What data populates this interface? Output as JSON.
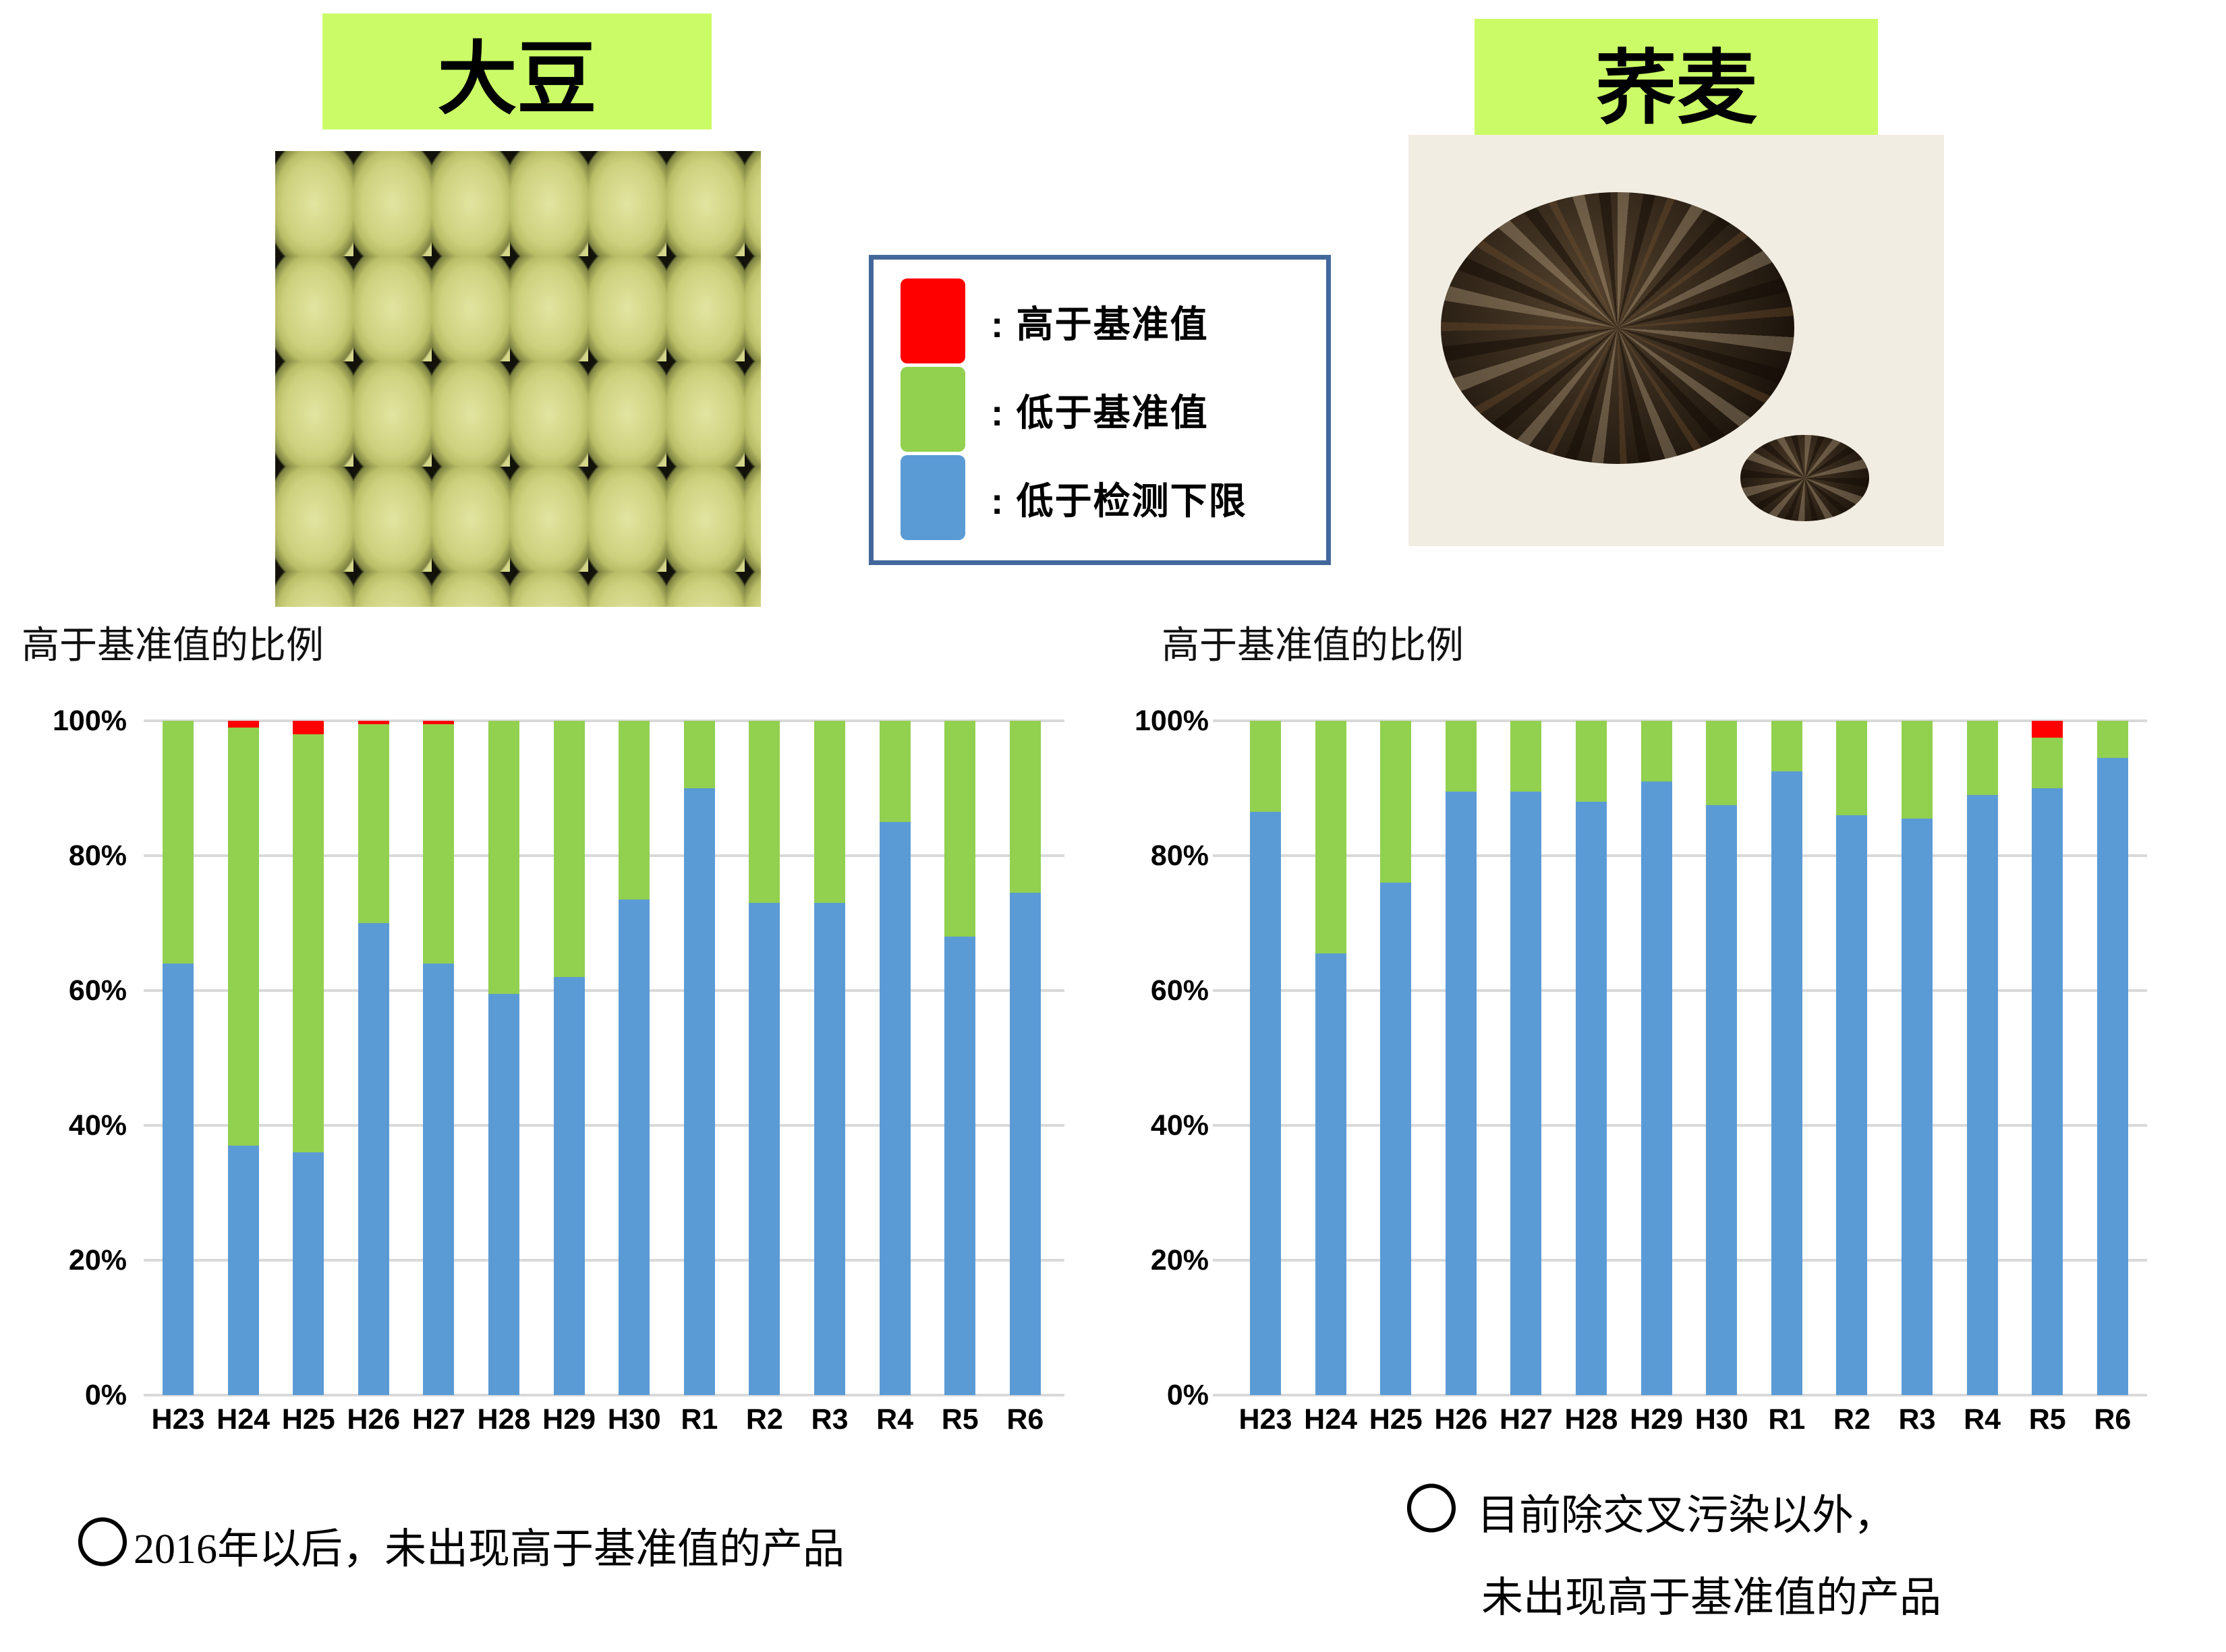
{
  "page_background": "#ffffff",
  "label_bg": "#CBFC67",
  "crops": {
    "soybean": {
      "label": "大豆"
    },
    "buckwheat": {
      "label": "荞麦"
    }
  },
  "legend": {
    "border_color": "#44679B",
    "items": [
      {
        "name": "above-standard",
        "color": "#FF0000",
        "label": ": 高于基准值"
      },
      {
        "name": "below-standard",
        "color": "#92D050",
        "label": ": 低于基准值"
      },
      {
        "name": "below-detection",
        "color": "#5B9BD5",
        "label": ": 低于检测下限"
      }
    ]
  },
  "chart_data": [
    {
      "type": "bar",
      "subtype": "stacked-100-percent",
      "crop": "大豆",
      "title": "高于基准值的比例",
      "categories": [
        "H23",
        "H24",
        "H25",
        "H26",
        "H27",
        "H28",
        "H29",
        "H30",
        "R1",
        "R2",
        "R3",
        "R4",
        "R5",
        "R6"
      ],
      "series": [
        {
          "name": "低于检测下限",
          "color": "#5B9BD5",
          "values": [
            64,
            37,
            36,
            70,
            64,
            59.5,
            62,
            73.5,
            90,
            73,
            73,
            85,
            68,
            74.5
          ]
        },
        {
          "name": "低于基准值",
          "color": "#92D050",
          "values": [
            36,
            62,
            62,
            29.5,
            35.5,
            40.5,
            38,
            26.5,
            10,
            27,
            27,
            15,
            32,
            25.5
          ]
        },
        {
          "name": "高于基准值",
          "color": "#FF0000",
          "values": [
            0,
            1,
            2,
            0.5,
            0.5,
            0,
            0,
            0,
            0,
            0,
            0,
            0,
            0,
            0
          ]
        }
      ],
      "ylim": [
        0,
        100
      ],
      "yticks": [
        "0%",
        "20%",
        "40%",
        "60%",
        "80%",
        "100%"
      ],
      "grid": true,
      "gridline_color": "#D9D9D9",
      "legend_position": "none"
    },
    {
      "type": "bar",
      "subtype": "stacked-100-percent",
      "crop": "荞麦",
      "title": "高于基准值的比例",
      "categories": [
        "H23",
        "H24",
        "H25",
        "H26",
        "H27",
        "H28",
        "H29",
        "H30",
        "R1",
        "R2",
        "R3",
        "R4",
        "R5",
        "R6"
      ],
      "series": [
        {
          "name": "低于检测下限",
          "color": "#5B9BD5",
          "values": [
            86.5,
            65.5,
            76,
            89.5,
            89.5,
            88,
            91,
            87.5,
            92.5,
            86,
            85.5,
            89,
            90,
            94.5
          ]
        },
        {
          "name": "低于基准值",
          "color": "#92D050",
          "values": [
            13.5,
            34.5,
            24,
            10.5,
            10.5,
            12,
            9,
            12.5,
            7.5,
            14,
            14.5,
            11,
            7.5,
            5.5
          ]
        },
        {
          "name": "高于基准值",
          "color": "#FF0000",
          "values": [
            0,
            0,
            0,
            0,
            0,
            0,
            0,
            0,
            0,
            0,
            0,
            0,
            2.5,
            0
          ]
        }
      ],
      "ylim": [
        0,
        100
      ],
      "yticks": [
        "0%",
        "20%",
        "40%",
        "60%",
        "80%",
        "100%"
      ],
      "grid": true,
      "gridline_color": "#D9D9D9",
      "legend_position": "none"
    }
  ],
  "annotations": {
    "soybean_note_circle": "〇",
    "soybean_note": "2016年以后，未出现高于基准值的产品",
    "buckwheat_note_circle": "〇",
    "buckwheat_note_line1": "目前除交叉污染以外，",
    "buckwheat_note_line2": "未出现高于基准值的产品"
  }
}
